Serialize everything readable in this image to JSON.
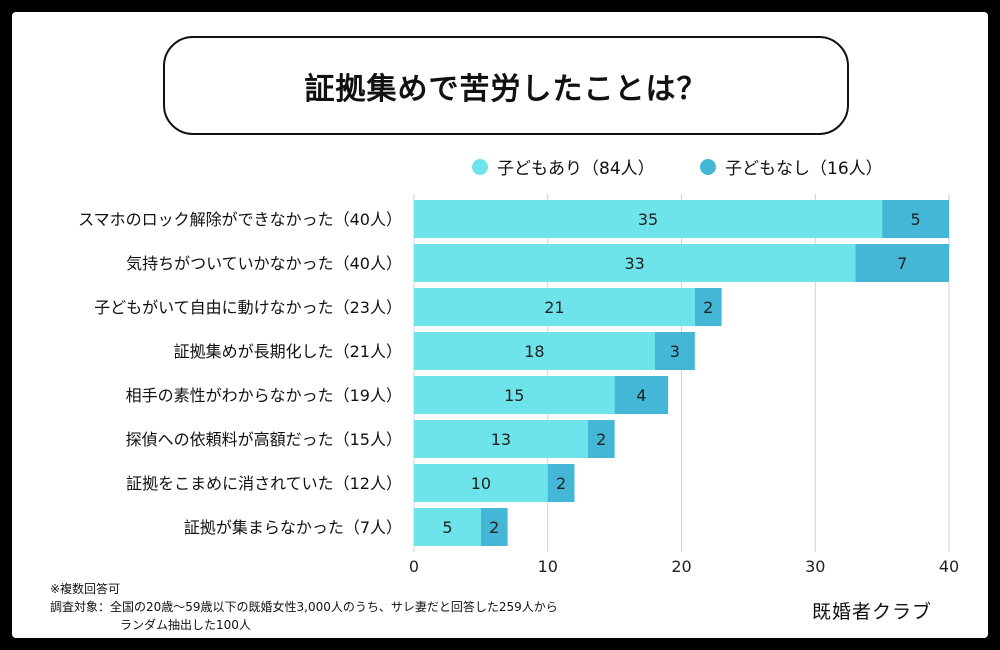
{
  "title": "証拠集めで苦労したことは？",
  "colors": {
    "with_children": "#6de3ea",
    "without_children": "#45b7d6",
    "grid": "#d0d0d0"
  },
  "chart_data": {
    "type": "bar",
    "orientation": "horizontal",
    "stacked": true,
    "categories": [
      "スマホのロック解除ができなかった（40人）",
      "気持ちがついていかなかった（40人）",
      "子どもがいて自由に動けなかった（23人）",
      "証拠集めが長期化した（21人）",
      "相手の素性がわからなかった（19人）",
      "探偵への依頼料が高額だった（15人）",
      "証拠をこまめに消されていた（12人）",
      "証拠が集まらなかった（7人）"
    ],
    "series": [
      {
        "name": "子どもあり（84人）",
        "values": [
          35,
          33,
          21,
          18,
          15,
          13,
          10,
          5
        ]
      },
      {
        "name": "子どもなし（16人）",
        "values": [
          5,
          7,
          2,
          3,
          4,
          2,
          2,
          2
        ]
      }
    ],
    "xlim": [
      0,
      40
    ],
    "xticks": [
      "0",
      "10",
      "20",
      "30",
      "40"
    ],
    "grid": "vertical",
    "legend_position": "top"
  },
  "notes": {
    "line1": "※複数回答可",
    "line2": "調査対象：全国の20歳〜59歳以下の既婚女性3,000人のうち、サレ妻だと回答した259人から",
    "line3": "ランダム抽出した100人"
  },
  "brand": "既婚者クラブ"
}
